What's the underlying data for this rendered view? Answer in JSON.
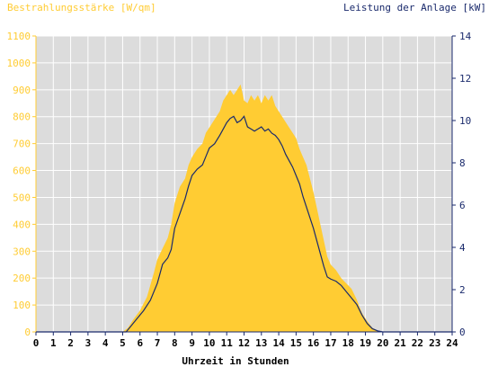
{
  "chart_data": {
    "type": "area",
    "left_axis_title": "Bestrahlungsstärke [W/qm]",
    "right_axis_title": "Leistung der Anlage [kW]",
    "xlabel": "Uhrzeit in Stunden",
    "colors": {
      "irradiance": "#ffcc33",
      "power": "#1a2a6c",
      "left_axis": "#ffcc33",
      "right_axis": "#1a2a6c",
      "plot_bg": "#dcdcdc",
      "grid": "#ffffff"
    },
    "x_ticks": [
      "0",
      "1",
      "2",
      "3",
      "4",
      "5",
      "6",
      "7",
      "8",
      "9",
      "10",
      "11",
      "12",
      "13",
      "14",
      "15",
      "16",
      "17",
      "18",
      "19",
      "20",
      "21",
      "22",
      "23",
      "24"
    ],
    "y_left_ticks": [
      "0",
      "100",
      "200",
      "300",
      "400",
      "500",
      "600",
      "700",
      "800",
      "900",
      "1000",
      "1100"
    ],
    "y_right_ticks": [
      "0",
      "2",
      "4",
      "6",
      "8",
      "10",
      "12",
      "14"
    ],
    "xlim": [
      0,
      24
    ],
    "ylim_left": [
      0,
      1100
    ],
    "ylim_right": [
      0,
      14
    ],
    "grid": true,
    "series": [
      {
        "name": "Bestrahlungsstärke",
        "axis": "left",
        "x": [
          0,
          5.0,
          5.3,
          5.6,
          6.0,
          6.4,
          6.8,
          7.0,
          7.3,
          7.6,
          7.8,
          8.0,
          8.3,
          8.6,
          8.8,
          9.0,
          9.3,
          9.6,
          9.8,
          10.0,
          10.3,
          10.6,
          10.8,
          11.0,
          11.2,
          11.4,
          11.6,
          11.8,
          12.0,
          12.2,
          12.4,
          12.6,
          12.8,
          13.0,
          13.2,
          13.4,
          13.6,
          13.8,
          14.0,
          14.2,
          14.4,
          14.6,
          14.8,
          15.0,
          15.2,
          15.4,
          15.6,
          15.8,
          16.0,
          16.2,
          16.4,
          16.6,
          16.8,
          17.0,
          17.3,
          17.6,
          17.9,
          18.2,
          18.5,
          18.8,
          19.1,
          19.4,
          19.7,
          20.0,
          24
        ],
        "y": [
          0,
          0,
          15,
          45,
          80,
          130,
          220,
          270,
          310,
          350,
          400,
          480,
          540,
          570,
          620,
          650,
          680,
          700,
          740,
          760,
          790,
          820,
          860,
          880,
          900,
          880,
          900,
          920,
          860,
          850,
          880,
          860,
          880,
          850,
          880,
          860,
          880,
          840,
          820,
          800,
          780,
          760,
          740,
          720,
          680,
          650,
          620,
          570,
          520,
          460,
          400,
          340,
          280,
          250,
          230,
          200,
          180,
          160,
          120,
          70,
          40,
          15,
          5,
          0,
          0
        ]
      },
      {
        "name": "Leistung",
        "axis": "right",
        "x": [
          0,
          5.2,
          5.5,
          5.8,
          6.2,
          6.6,
          7.0,
          7.3,
          7.6,
          7.8,
          8.0,
          8.3,
          8.6,
          8.8,
          9.0,
          9.3,
          9.6,
          9.8,
          10.0,
          10.3,
          10.6,
          10.8,
          11.0,
          11.2,
          11.4,
          11.6,
          11.8,
          12.0,
          12.2,
          12.4,
          12.6,
          12.8,
          13.0,
          13.2,
          13.4,
          13.6,
          13.8,
          14.0,
          14.2,
          14.4,
          14.6,
          14.8,
          15.0,
          15.2,
          15.4,
          15.6,
          15.8,
          16.0,
          16.2,
          16.4,
          16.6,
          16.8,
          17.0,
          17.3,
          17.6,
          17.9,
          18.2,
          18.5,
          18.8,
          19.1,
          19.4,
          19.7,
          20.0,
          24
        ],
        "y": [
          0,
          0,
          0.3,
          0.6,
          1.0,
          1.5,
          2.3,
          3.2,
          3.5,
          3.9,
          4.9,
          5.6,
          6.3,
          6.9,
          7.4,
          7.7,
          7.9,
          8.3,
          8.7,
          8.9,
          9.3,
          9.6,
          9.9,
          10.1,
          10.2,
          9.9,
          10.0,
          10.2,
          9.7,
          9.6,
          9.5,
          9.6,
          9.7,
          9.5,
          9.6,
          9.4,
          9.3,
          9.1,
          8.8,
          8.4,
          8.1,
          7.8,
          7.4,
          7.0,
          6.4,
          5.9,
          5.4,
          4.9,
          4.3,
          3.7,
          3.1,
          2.6,
          2.5,
          2.4,
          2.2,
          1.9,
          1.6,
          1.3,
          0.8,
          0.4,
          0.15,
          0.05,
          0,
          0
        ]
      }
    ]
  }
}
